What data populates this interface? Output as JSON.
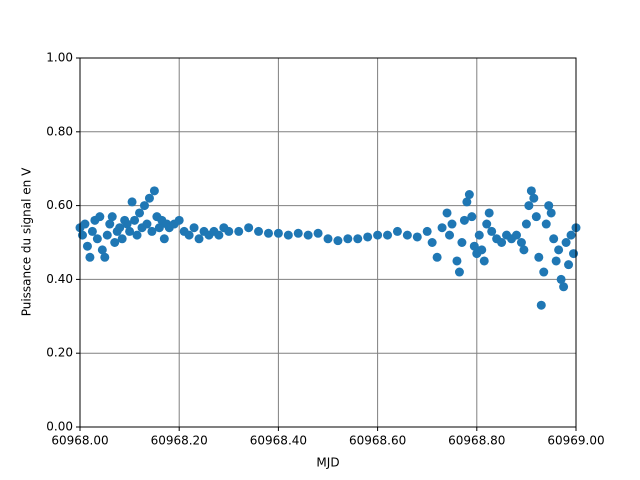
{
  "chart_data": {
    "type": "scatter",
    "xlabel": "MJD",
    "ylabel": "Puissance du signal en V",
    "color": "#1f77b4",
    "grid": true,
    "grid_color": "#808080",
    "xlim": [
      60968.0,
      60969.0
    ],
    "xticks": [
      {
        "value": 60968.0,
        "label": "60968.00"
      },
      {
        "value": 60968.2,
        "label": "60968.20"
      },
      {
        "value": 60968.4,
        "label": "60968.40"
      },
      {
        "value": 60968.6,
        "label": "60968.60"
      },
      {
        "value": 60968.8,
        "label": "60968.80"
      },
      {
        "value": 60969.0,
        "label": "60969.00"
      }
    ],
    "ylim": [
      0,
      1
    ],
    "yticks": [
      {
        "value": 0,
        "label": "0.00"
      },
      {
        "value": 0.2,
        "label": "0.20"
      },
      {
        "value": 0.4,
        "label": "0.40"
      },
      {
        "value": 0.6,
        "label": "0.60"
      },
      {
        "value": 0.8,
        "label": "0.80"
      },
      {
        "value": 1,
        "label": "1.00"
      }
    ],
    "x": [
      60968.0,
      60968.005,
      60968.01,
      60968.015,
      60968.02,
      60968.025,
      60968.03,
      60968.035,
      60968.04,
      60968.045,
      60968.05,
      60968.055,
      60968.06,
      60968.065,
      60968.07,
      60968.075,
      60968.08,
      60968.085,
      60968.09,
      60968.095,
      60968.1,
      60968.105,
      60968.11,
      60968.115,
      60968.12,
      60968.125,
      60968.13,
      60968.135,
      60968.14,
      60968.145,
      60968.15,
      60968.155,
      60968.16,
      60968.165,
      60968.17,
      60968.175,
      60968.18,
      60968.19,
      60968.2,
      60968.21,
      60968.22,
      60968.23,
      60968.24,
      60968.25,
      60968.26,
      60968.27,
      60968.28,
      60968.29,
      60968.3,
      60968.32,
      60968.34,
      60968.36,
      60968.38,
      60968.4,
      60968.42,
      60968.44,
      60968.46,
      60968.48,
      60968.5,
      60968.52,
      60968.54,
      60968.56,
      60968.58,
      60968.6,
      60968.62,
      60968.64,
      60968.66,
      60968.68,
      60968.7,
      60968.71,
      60968.72,
      60968.73,
      60968.74,
      60968.745,
      60968.75,
      60968.76,
      60968.765,
      60968.77,
      60968.775,
      60968.78,
      60968.785,
      60968.79,
      60968.795,
      60968.8,
      60968.805,
      60968.81,
      60968.815,
      60968.82,
      60968.825,
      60968.83,
      60968.84,
      60968.85,
      60968.86,
      60968.87,
      60968.88,
      60968.89,
      60968.895,
      60968.9,
      60968.905,
      60968.91,
      60968.915,
      60968.92,
      60968.925,
      60968.93,
      60968.935,
      60968.94,
      60968.945,
      60968.95,
      60968.955,
      60968.96,
      60968.965,
      60968.97,
      60968.975,
      60968.98,
      60968.985,
      60968.99,
      60968.995,
      60969.0
    ],
    "values": [
      0.54,
      0.52,
      0.55,
      0.49,
      0.46,
      0.53,
      0.56,
      0.51,
      0.57,
      0.48,
      0.46,
      0.52,
      0.55,
      0.57,
      0.5,
      0.53,
      0.54,
      0.51,
      0.56,
      0.55,
      0.53,
      0.61,
      0.56,
      0.52,
      0.58,
      0.54,
      0.6,
      0.55,
      0.62,
      0.53,
      0.64,
      0.57,
      0.54,
      0.56,
      0.51,
      0.55,
      0.54,
      0.55,
      0.56,
      0.53,
      0.52,
      0.54,
      0.51,
      0.53,
      0.52,
      0.53,
      0.52,
      0.54,
      0.53,
      0.53,
      0.54,
      0.53,
      0.525,
      0.525,
      0.52,
      0.525,
      0.52,
      0.525,
      0.51,
      0.505,
      0.51,
      0.51,
      0.515,
      0.52,
      0.52,
      0.53,
      0.52,
      0.515,
      0.53,
      0.5,
      0.46,
      0.54,
      0.58,
      0.52,
      0.55,
      0.45,
      0.42,
      0.5,
      0.56,
      0.61,
      0.63,
      0.57,
      0.49,
      0.47,
      0.52,
      0.48,
      0.45,
      0.55,
      0.58,
      0.53,
      0.51,
      0.5,
      0.52,
      0.51,
      0.52,
      0.5,
      0.48,
      0.55,
      0.6,
      0.64,
      0.62,
      0.57,
      0.46,
      0.33,
      0.42,
      0.55,
      0.6,
      0.58,
      0.51,
      0.45,
      0.48,
      0.4,
      0.38,
      0.5,
      0.44,
      0.52,
      0.47,
      0.54
    ]
  }
}
